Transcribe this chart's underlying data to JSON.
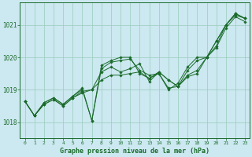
{
  "title": "Graphe pression niveau de la mer (hPa)",
  "background_color": "#cce8f0",
  "grid_color": "#99ccbb",
  "line_color": "#1a6b2a",
  "xlim": [
    -0.5,
    23.5
  ],
  "ylim": [
    1017.5,
    1021.7
  ],
  "yticks": [
    1018,
    1019,
    1020,
    1021
  ],
  "xticks": [
    0,
    1,
    2,
    3,
    4,
    5,
    6,
    7,
    8,
    9,
    10,
    11,
    12,
    13,
    14,
    15,
    16,
    17,
    18,
    19,
    20,
    21,
    22,
    23
  ],
  "series": [
    [
      1018.65,
      1018.2,
      1018.55,
      1018.7,
      1018.5,
      1018.75,
      1018.9,
      1019.0,
      1019.3,
      1019.45,
      1019.45,
      1019.5,
      1019.55,
      1019.35,
      1019.55,
      1019.3,
      1019.1,
      1019.4,
      1019.5,
      1020.0,
      1020.3,
      1020.9,
      1021.25,
      1021.1
    ],
    [
      1018.65,
      1018.2,
      1018.55,
      1018.7,
      1018.5,
      1018.75,
      1018.95,
      1019.0,
      1019.55,
      1019.7,
      1019.55,
      1019.65,
      1019.8,
      1019.25,
      1019.55,
      1019.3,
      1019.1,
      1019.45,
      1019.6,
      1020.0,
      1020.35,
      1021.0,
      1021.3,
      1021.2
    ],
    [
      1018.65,
      1018.2,
      1018.6,
      1018.75,
      1018.55,
      1018.8,
      1019.0,
      1018.05,
      1019.65,
      1019.85,
      1019.9,
      1019.95,
      1019.6,
      1019.45,
      1019.5,
      1019.05,
      1019.1,
      1019.6,
      1019.9,
      1020.0,
      1020.5,
      1021.0,
      1021.35,
      1021.2
    ],
    [
      1018.65,
      1018.2,
      1018.6,
      1018.75,
      1018.55,
      1018.8,
      1019.05,
      1018.05,
      1019.75,
      1019.9,
      1020.0,
      1020.0,
      1019.5,
      1019.35,
      1019.5,
      1019.0,
      1019.2,
      1019.7,
      1020.0,
      1020.0,
      1020.5,
      1021.0,
      1021.35,
      1021.2
    ]
  ]
}
